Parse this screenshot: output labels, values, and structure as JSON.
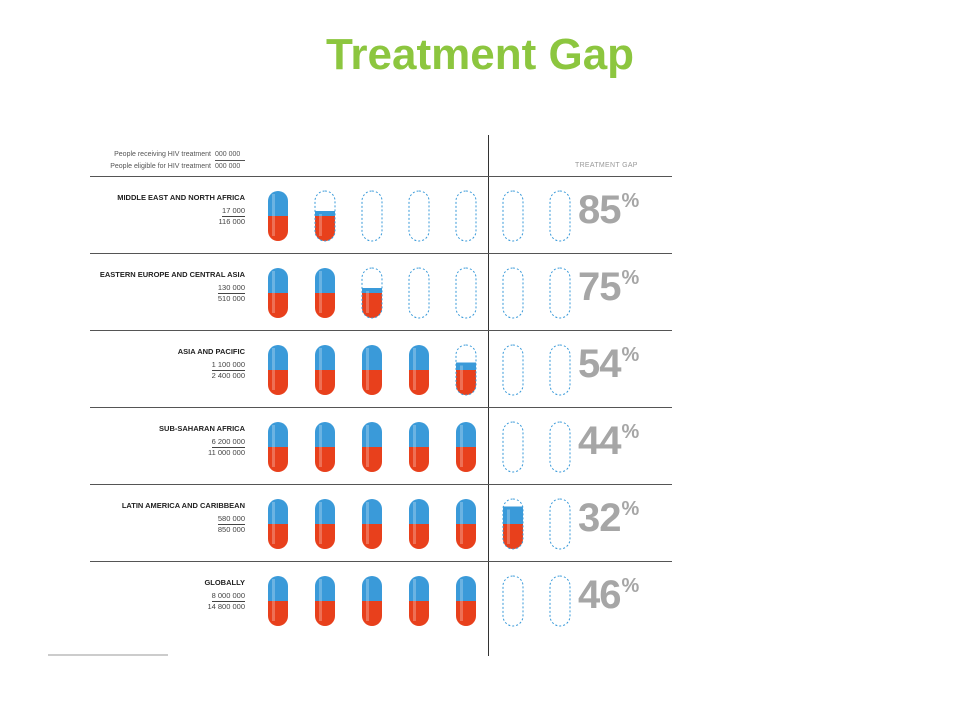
{
  "title": "Treatment Gap",
  "legend": {
    "receiving_label": "People receiving HIV treatment",
    "receiving_value": "000 000",
    "eligible_label": "People eligible for HIV treatment",
    "eligible_value": "000 000"
  },
  "gap_header": "TREATMENT GAP",
  "colors": {
    "title": "#8cc63f",
    "pill_top": "#3a9ad9",
    "pill_bottom": "#e8401c",
    "outline": "#3a9ad9",
    "gap_text": "#a6a6a6"
  },
  "chart_data": {
    "type": "pictograph",
    "pills_per_row": 7,
    "unit": "%",
    "rows": [
      {
        "region": "MIDDLE EAST AND NORTH AFRICA",
        "receiving": "17 000",
        "eligible": "116 000",
        "gap": 85,
        "filled_pills": 1.6
      },
      {
        "region": "EASTERN EUROPE AND CENTRAL ASIA",
        "receiving": "130 000",
        "eligible": "510 000",
        "gap": 75,
        "filled_pills": 2.6
      },
      {
        "region": "ASIA AND PACIFIC",
        "receiving": "1 100 000",
        "eligible": "2 400 000",
        "gap": 54,
        "filled_pills": 4.65
      },
      {
        "region": "SUB-SAHARAN AFRICA",
        "receiving": "6 200 000",
        "eligible": "11 000 000",
        "gap": 44,
        "filled_pills": 5
      },
      {
        "region": "LATIN AMERICA AND CARIBBEAN",
        "receiving": "580 000",
        "eligible": "850 000",
        "gap": 32,
        "filled_pills": 5.85
      },
      {
        "region": "GLOBALLY",
        "receiving": "8 000 000",
        "eligible": "14 800 000",
        "gap": 46,
        "filled_pills": 5
      }
    ]
  }
}
